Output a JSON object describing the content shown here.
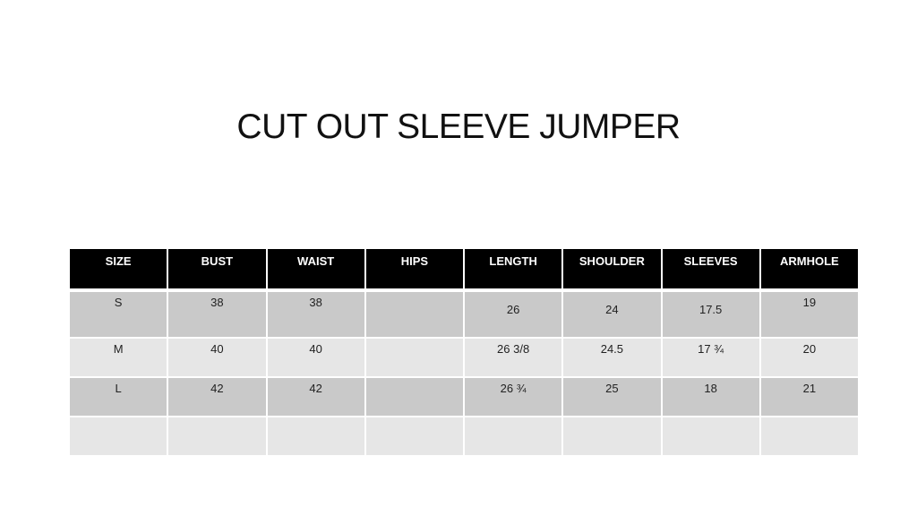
{
  "title": "CUT OUT SLEEVE JUMPER",
  "table": {
    "headers": [
      "SIZE",
      "BUST",
      "WAIST",
      "HIPS",
      "LENGTH",
      "SHOULDER",
      "SLEEVES",
      "ARMHOLE"
    ],
    "rows": [
      [
        "S",
        "38",
        "38",
        "",
        "26",
        "24",
        "17.5",
        "19"
      ],
      [
        "M",
        "40",
        "40",
        "",
        "26 3/8",
        "24.5",
        "17 ¾",
        "20"
      ],
      [
        "L",
        "42",
        "42",
        "",
        "26 ¾",
        "25",
        "18",
        "21"
      ],
      [
        "",
        "",
        "",
        "",
        "",
        "",
        "",
        ""
      ]
    ],
    "header_color": "#000000",
    "row_colors": [
      "#c9c9c9",
      "#e6e6e6"
    ]
  }
}
